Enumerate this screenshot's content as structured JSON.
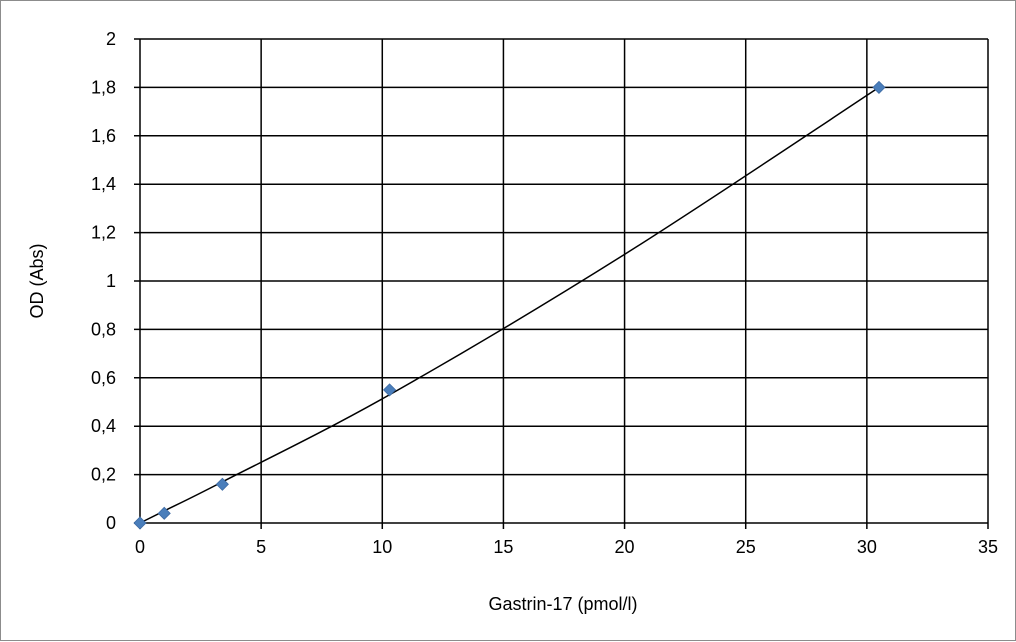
{
  "chart_data": {
    "type": "scatter",
    "title": "",
    "xlabel": "Gastrin-17 (pmol/l)",
    "ylabel": "OD (Abs)",
    "xlim": [
      0,
      35
    ],
    "ylim": [
      0,
      2
    ],
    "x_ticks": [
      "0",
      "5",
      "10",
      "15",
      "20",
      "25",
      "30",
      "35"
    ],
    "y_ticks": [
      "0",
      "0,2",
      "0,4",
      "0,6",
      "0,8",
      "1",
      "1,2",
      "1,4",
      "1,6",
      "1,8",
      "2"
    ],
    "grid": true,
    "legend": "none",
    "series": [
      {
        "marker": "diamond",
        "color": "#4a7ebb",
        "points": [
          {
            "x": 0,
            "y": 0
          },
          {
            "x": 1,
            "y": 0.04
          },
          {
            "x": 3.4,
            "y": 0.16
          },
          {
            "x": 10.3,
            "y": 0.55
          },
          {
            "x": 30.5,
            "y": 1.8
          }
        ]
      }
    ],
    "trendline": {
      "color": "#000000",
      "points": [
        {
          "x": 0,
          "y": 0
        },
        {
          "x": 1,
          "y": 0.05
        },
        {
          "x": 3.4,
          "y": 0.17
        },
        {
          "x": 10.3,
          "y": 0.53
        },
        {
          "x": 20,
          "y": 1.11
        },
        {
          "x": 30.5,
          "y": 1.8
        }
      ]
    }
  }
}
